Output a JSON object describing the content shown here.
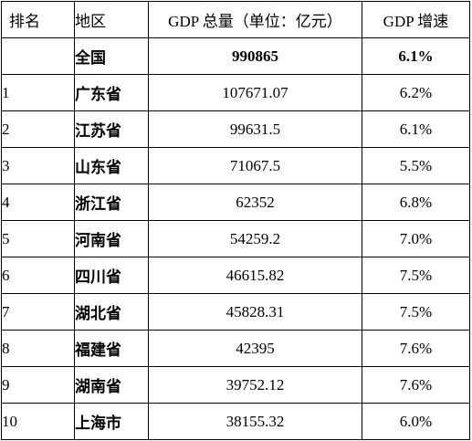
{
  "table": {
    "headers": [
      "排名",
      "地区",
      "GDP 总量（单位：亿元）",
      "GDP 增速"
    ],
    "total": {
      "rank": "",
      "region": "全国",
      "gdp": "990865",
      "growth": "6.1%"
    },
    "rows": [
      {
        "rank": "1",
        "region": "广东省",
        "gdp": "107671.07",
        "growth": "6.2%"
      },
      {
        "rank": "2",
        "region": "江苏省",
        "gdp": "99631.5",
        "growth": "6.1%"
      },
      {
        "rank": "3",
        "region": "山东省",
        "gdp": "71067.5",
        "growth": "5.5%"
      },
      {
        "rank": "4",
        "region": "浙江省",
        "gdp": "62352",
        "growth": "6.8%"
      },
      {
        "rank": "5",
        "region": "河南省",
        "gdp": "54259.2",
        "growth": "7.0%"
      },
      {
        "rank": "6",
        "region": "四川省",
        "gdp": "46615.82",
        "growth": "7.5%"
      },
      {
        "rank": "7",
        "region": "湖北省",
        "gdp": "45828.31",
        "growth": "7.5%"
      },
      {
        "rank": "8",
        "region": "福建省",
        "gdp": "42395",
        "growth": "7.6%"
      },
      {
        "rank": "9",
        "region": "湖南省",
        "gdp": "39752.12",
        "growth": "7.6%"
      },
      {
        "rank": "10",
        "region": "上海市",
        "gdp": "38155.32",
        "growth": "6.0%"
      }
    ]
  }
}
